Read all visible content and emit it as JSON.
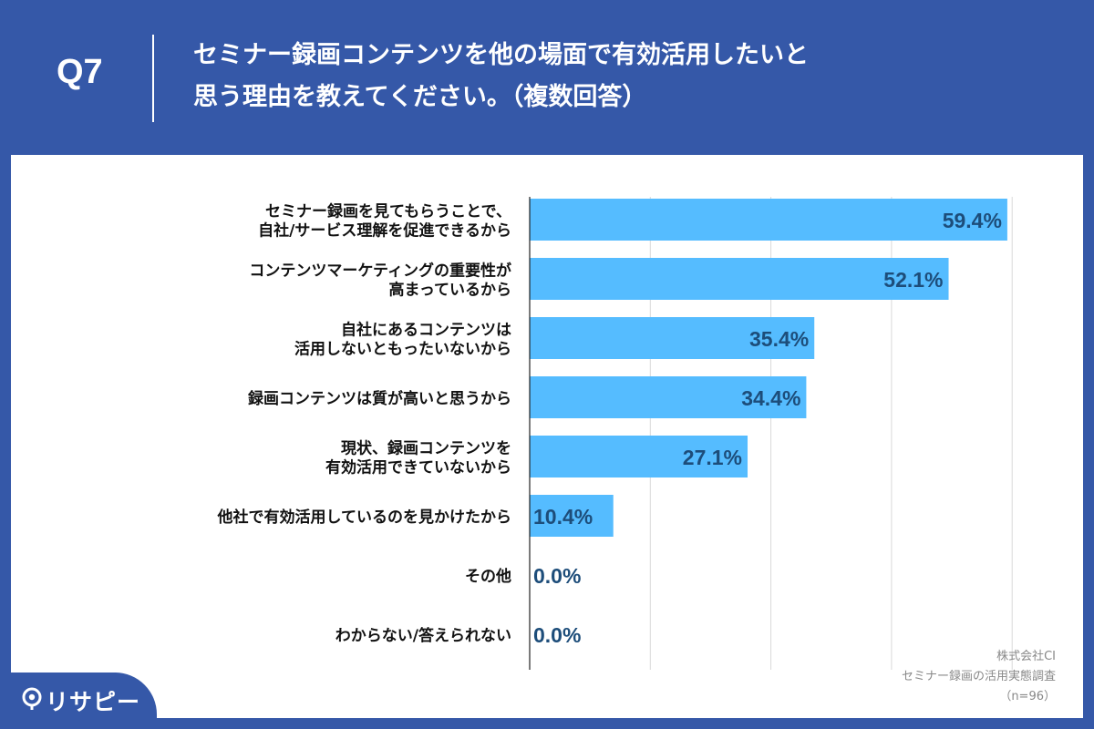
{
  "header": {
    "question_number": "Q7",
    "title_line1": "セミナー録画コンテンツを他の場面で有効活用したいと",
    "title_line2": "思う理由を教えてください。（複数回答）"
  },
  "brand": {
    "name": "リサピー"
  },
  "source": {
    "company": "株式会社CI",
    "survey": "セミナー録画の活用実態調査",
    "sample": "（n=96）"
  },
  "colors": {
    "background": "#3558a8",
    "bar": "#55bcff",
    "value_text": "#1d4d7a",
    "label_text": "#111111"
  },
  "chart_data": {
    "type": "bar",
    "orientation": "horizontal",
    "unit": "%",
    "xlim": [
      0,
      100
    ],
    "gridlines": true,
    "categories": [
      [
        "セミナー録画を見てもらうことで、",
        "自社/サービス理解を促進できるから"
      ],
      [
        "コンテンツマーケティングの重要性が",
        "高まっているから"
      ],
      [
        "自社にあるコンテンツは",
        "活用しないともったいないから"
      ],
      [
        "録画コンテンツは質が高いと思うから"
      ],
      [
        "現状、録画コンテンツを",
        "有効活用できていないから"
      ],
      [
        "他社で有効活用しているのを見かけたから"
      ],
      [
        "その他"
      ],
      [
        "わからない/答えられない"
      ]
    ],
    "values": [
      59.4,
      52.1,
      35.4,
      34.4,
      27.1,
      10.4,
      0.0,
      0.0
    ],
    "value_labels": [
      "59.4%",
      "52.1%",
      "35.4%",
      "34.4%",
      "27.1%",
      "10.4%",
      "0.0%",
      "0.0%"
    ]
  }
}
